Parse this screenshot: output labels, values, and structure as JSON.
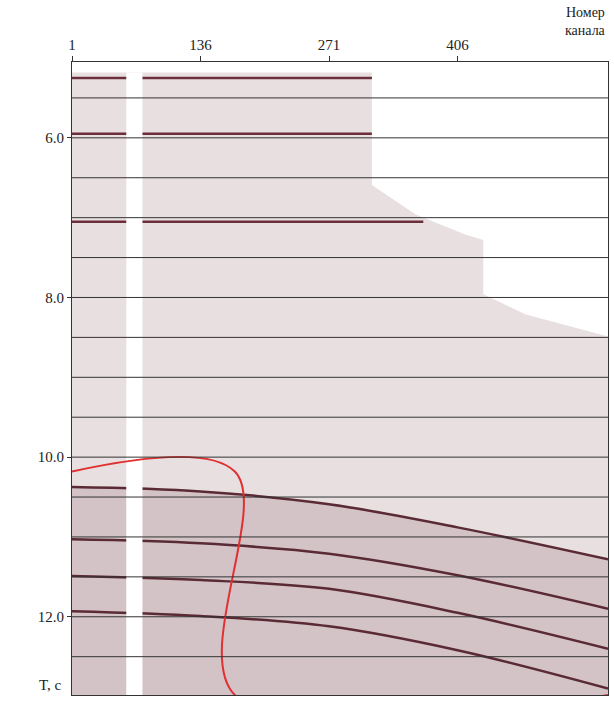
{
  "chart_data": {
    "type": "line",
    "xlabel": "Номер канала",
    "ylabel": "T, с",
    "xlim": [
      1,
      564
    ],
    "xticks": [
      1,
      136,
      271,
      406
    ],
    "ylim": [
      5.05,
      12.98
    ],
    "yticks": [
      {
        "value": 6,
        "label": "6.0"
      },
      {
        "value": 8,
        "label": "8.0"
      },
      {
        "value": 10,
        "label": "10.0"
      },
      {
        "value": 12,
        "label": "12.0"
      }
    ],
    "hlines": [
      5.5,
      6.0,
      6.5,
      7.0,
      7.5,
      8.0,
      8.5,
      9.0,
      9.5,
      10.0,
      10.5,
      11.0,
      11.5,
      12.0,
      12.5
    ],
    "series": [
      {
        "type": "area",
        "color": "#e8dfe0",
        "x": [
          1,
          316,
          316,
          362,
          414,
          433,
          433,
          477,
          564,
          564,
          1
        ],
        "values": [
          5.18,
          5.18,
          6.59,
          6.96,
          7.21,
          7.28,
          7.96,
          8.21,
          8.49,
          12.98,
          12.98
        ]
      },
      {
        "type": "area",
        "color": "#d3c3c7",
        "x": [
          1,
          136,
          271,
          406,
          564,
          564,
          1
        ],
        "values": [
          10.375,
          10.43,
          10.59,
          10.88,
          11.28,
          12.98,
          12.98
        ]
      },
      {
        "type": "line",
        "color": "#6b2e3a",
        "line_style": "solid",
        "x": [
          1,
          316
        ],
        "values": [
          5.25,
          5.25
        ]
      },
      {
        "type": "line",
        "color": "#6b2e3a",
        "line_style": "solid",
        "x": [
          1,
          316
        ],
        "values": [
          5.95,
          5.95
        ]
      },
      {
        "type": "line",
        "color": "#6b2e3a",
        "line_style": "solid",
        "x": [
          1,
          370
        ],
        "values": [
          7.05,
          7.05
        ]
      },
      {
        "type": "line",
        "color": "#5a2a35",
        "line_style": "solid",
        "x": [
          1,
          136,
          271,
          406,
          564
        ],
        "values": [
          10.375,
          10.43,
          10.59,
          10.88,
          11.28
        ]
      },
      {
        "type": "line",
        "color": "#5a2a35",
        "line_style": "solid",
        "x": [
          1,
          136,
          271,
          406,
          564
        ],
        "values": [
          11.03,
          11.08,
          11.21,
          11.48,
          11.9
        ]
      },
      {
        "type": "line",
        "color": "#5a2a35",
        "line_style": "solid",
        "x": [
          1,
          136,
          271,
          406,
          564
        ],
        "values": [
          11.49,
          11.54,
          11.65,
          11.95,
          12.4
        ]
      },
      {
        "type": "line",
        "color": "#5a2a35",
        "line_style": "solid",
        "x": [
          1,
          136,
          271,
          406,
          564
        ],
        "values": [
          11.93,
          11.99,
          12.12,
          12.42,
          12.9
        ]
      },
      {
        "type": "area",
        "color": "#ffffff",
        "x": [
          58,
          75,
          75,
          58
        ],
        "values": [
          5.18,
          5.18,
          12.98,
          12.98
        ]
      },
      {
        "type": "line",
        "color": "#e03030",
        "line_style": "solid",
        "x": [
          1,
          172,
          172,
          564
        ],
        "values": [
          10.18,
          10.18,
          12.98,
          12.98
        ]
      }
    ]
  }
}
